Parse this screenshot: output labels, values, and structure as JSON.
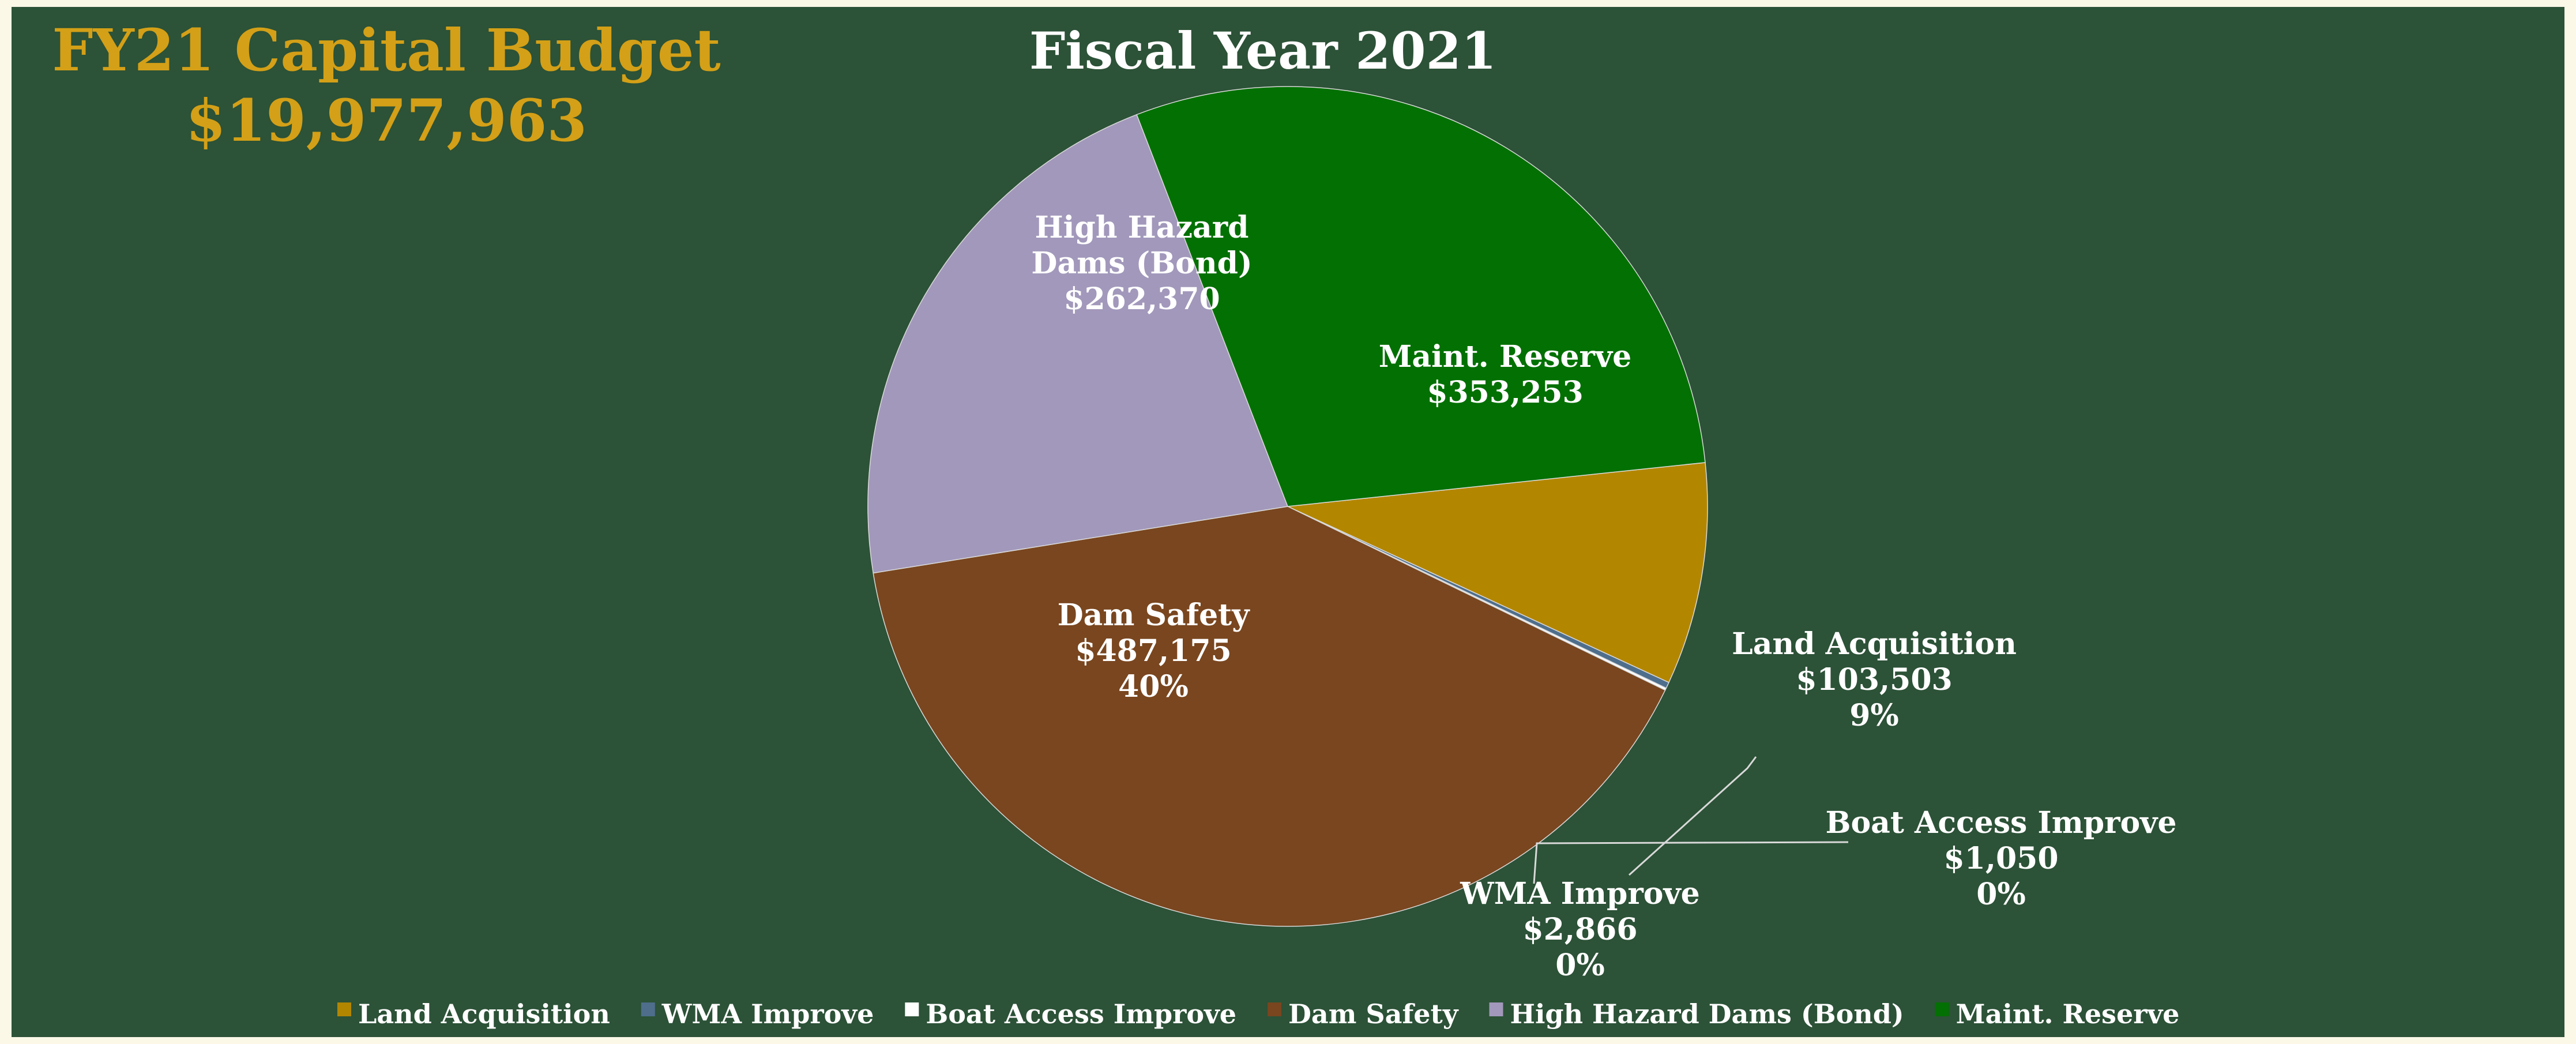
{
  "header": {
    "budget_title": "FY21 Capital Budget",
    "budget_total": "$19,977,963"
  },
  "chart_data": {
    "type": "pie",
    "title": "Fiscal Year 2021",
    "legend_position": "bottom",
    "start_angle_deg": 84,
    "slices": [
      {
        "label": "Land Acquisition",
        "value": 103503,
        "display": "$103,503",
        "percent": "9%",
        "color": "#b38600",
        "label_lines": [
          "Land Acquisition",
          "$103,503",
          "9%"
        ]
      },
      {
        "label": "WMA Improve",
        "value": 2866,
        "display": "$2,866",
        "percent": "0%",
        "color": "#4e6e8c",
        "label_lines": [
          "WMA Improve",
          "$2,866",
          "0%"
        ]
      },
      {
        "label": "Boat Access Improve",
        "value": 1050,
        "display": "$1,050",
        "percent": "0%",
        "color": "#ffffff",
        "label_lines": [
          "Boat Access Improve",
          "$1,050",
          "0%"
        ]
      },
      {
        "label": "Dam Safety",
        "value": 487175,
        "display": "$487,175",
        "percent": "40%",
        "color": "#79461f",
        "label_lines": [
          "Dam Safety",
          "$487,175",
          "40%"
        ]
      },
      {
        "label": "High Hazard Dams (Bond)",
        "value": 262370,
        "display": "$262,370",
        "percent": "",
        "color": "#a298bb",
        "label_lines": [
          "High Hazard",
          "Dams (Bond)",
          "$262,370"
        ]
      },
      {
        "label": "Maint. Reserve",
        "value": 353253,
        "display": "$353,253",
        "percent": "",
        "color": "#037003",
        "label_lines": [
          "Maint. Reserve",
          "$353,253"
        ]
      }
    ],
    "legend": [
      {
        "label": "Land Acquisition",
        "color": "#b38600"
      },
      {
        "label": "WMA Improve",
        "color": "#4e6e8c"
      },
      {
        "label": "Boat Access Improve",
        "color": "#ffffff"
      },
      {
        "label": "Dam Safety",
        "color": "#79461f"
      },
      {
        "label": "High Hazard Dams (Bond)",
        "color": "#a298bb"
      },
      {
        "label": "Maint. Reserve",
        "color": "#037003"
      }
    ]
  }
}
